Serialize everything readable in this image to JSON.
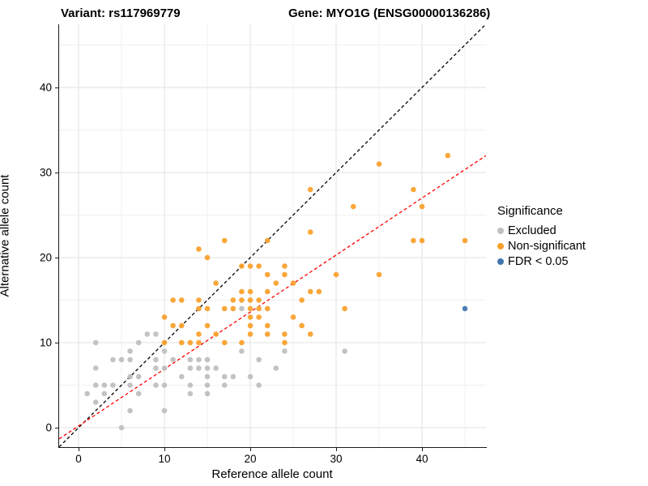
{
  "header": {
    "variant_title": "Variant: rs117969779",
    "gene_title": "Gene: MYO1G (ENSG00000136286)"
  },
  "axes": {
    "x_label": "Reference allele count",
    "y_label": "Alternative allele count",
    "x_ticks": [
      0,
      10,
      20,
      30,
      40
    ],
    "y_ticks": [
      0,
      10,
      20,
      30,
      40
    ]
  },
  "legend": {
    "title": "Significance",
    "items": [
      {
        "label": "Excluded",
        "color": "#BEBEBE"
      },
      {
        "label": "Non-significant",
        "color": "#F9A029"
      },
      {
        "label": "FDR < 0.05",
        "color": "#3E76AE"
      }
    ]
  },
  "chart_data": {
    "type": "scatter",
    "title": "Variant: rs117969779 — Gene: MYO1G (ENSG00000136286)",
    "xlabel": "Reference allele count",
    "ylabel": "Alternative allele count",
    "xlim": [
      -2.26,
      47.45
    ],
    "ylim": [
      -2.29,
      47.43
    ],
    "grid": {
      "step": 5,
      "min": 0,
      "max": 45,
      "major_every": 10
    },
    "point_radius": 3.3,
    "series": [
      {
        "name": "Excluded",
        "color": "#BEBEBE",
        "points": [
          [
            2,
            3
          ],
          [
            5,
            0
          ],
          [
            6,
            2
          ],
          [
            10,
            2
          ],
          [
            1,
            4
          ],
          [
            3,
            4
          ],
          [
            7,
            4
          ],
          [
            13,
            4
          ],
          [
            15,
            4
          ],
          [
            2,
            5
          ],
          [
            3,
            5
          ],
          [
            4,
            5
          ],
          [
            6,
            5
          ],
          [
            9,
            5
          ],
          [
            10,
            5
          ],
          [
            13,
            5
          ],
          [
            15,
            5
          ],
          [
            17,
            5
          ],
          [
            21,
            5
          ],
          [
            6,
            6
          ],
          [
            7,
            6
          ],
          [
            12,
            6
          ],
          [
            15,
            6
          ],
          [
            17,
            6
          ],
          [
            18,
            6
          ],
          [
            20,
            6
          ],
          [
            2,
            7
          ],
          [
            9,
            7
          ],
          [
            10,
            7
          ],
          [
            13,
            7
          ],
          [
            14,
            7
          ],
          [
            15,
            7
          ],
          [
            16,
            7
          ],
          [
            23,
            7
          ],
          [
            4,
            8
          ],
          [
            5,
            8
          ],
          [
            6,
            8
          ],
          [
            9,
            8
          ],
          [
            11,
            8
          ],
          [
            13,
            8
          ],
          [
            14,
            8
          ],
          [
            15,
            8
          ],
          [
            21,
            8
          ],
          [
            6,
            9
          ],
          [
            10,
            9
          ],
          [
            19,
            9
          ],
          [
            24,
            9
          ],
          [
            31,
            9
          ],
          [
            2,
            10
          ],
          [
            7,
            10
          ],
          [
            8,
            11
          ],
          [
            9,
            11
          ],
          [
            19,
            14
          ]
        ]
      },
      {
        "name": "Non-significant",
        "color": "#F9A029",
        "points": [
          [
            10,
            10
          ],
          [
            12,
            10
          ],
          [
            13,
            10
          ],
          [
            14,
            10
          ],
          [
            17,
            10
          ],
          [
            19,
            10
          ],
          [
            24,
            10
          ],
          [
            14,
            11
          ],
          [
            16,
            11
          ],
          [
            20,
            11
          ],
          [
            22,
            11
          ],
          [
            24,
            11
          ],
          [
            27,
            11
          ],
          [
            11,
            12
          ],
          [
            12,
            12
          ],
          [
            15,
            12
          ],
          [
            20,
            12
          ],
          [
            22,
            12
          ],
          [
            26,
            12
          ],
          [
            10,
            13
          ],
          [
            20,
            13
          ],
          [
            21,
            13
          ],
          [
            25,
            13
          ],
          [
            14,
            14
          ],
          [
            15,
            14
          ],
          [
            17,
            14
          ],
          [
            18,
            14
          ],
          [
            20,
            14
          ],
          [
            21,
            14
          ],
          [
            22,
            14
          ],
          [
            31,
            14
          ],
          [
            11,
            15
          ],
          [
            12,
            15
          ],
          [
            14,
            15
          ],
          [
            18,
            15
          ],
          [
            19,
            15
          ],
          [
            20,
            15
          ],
          [
            21,
            15
          ],
          [
            26,
            15
          ],
          [
            19,
            16
          ],
          [
            20,
            16
          ],
          [
            22,
            16
          ],
          [
            27,
            16
          ],
          [
            28,
            16
          ],
          [
            16,
            17
          ],
          [
            23,
            17
          ],
          [
            25,
            17
          ],
          [
            22,
            18
          ],
          [
            24,
            18
          ],
          [
            30,
            18
          ],
          [
            35,
            18
          ],
          [
            19,
            19
          ],
          [
            20,
            19
          ],
          [
            21,
            19
          ],
          [
            24,
            19
          ],
          [
            15,
            20
          ],
          [
            14,
            21
          ],
          [
            17,
            22
          ],
          [
            22,
            22
          ],
          [
            39,
            22
          ],
          [
            40,
            22
          ],
          [
            45,
            22
          ],
          [
            27,
            23
          ],
          [
            32,
            26
          ],
          [
            40,
            26
          ],
          [
            27,
            28
          ],
          [
            39,
            28
          ],
          [
            35,
            31
          ],
          [
            43,
            32
          ]
        ]
      },
      {
        "name": "FDR < 0.05",
        "color": "#3E76AE",
        "points": [
          [
            45,
            14
          ]
        ]
      }
    ],
    "lines": [
      {
        "name": "identity",
        "color": "#000000",
        "slope": 1,
        "intercept": 0,
        "dash": "4,3"
      },
      {
        "name": "regression",
        "color": "#FF0000",
        "slope": 0.67,
        "intercept": 0.2,
        "dash": "4,3"
      }
    ]
  }
}
